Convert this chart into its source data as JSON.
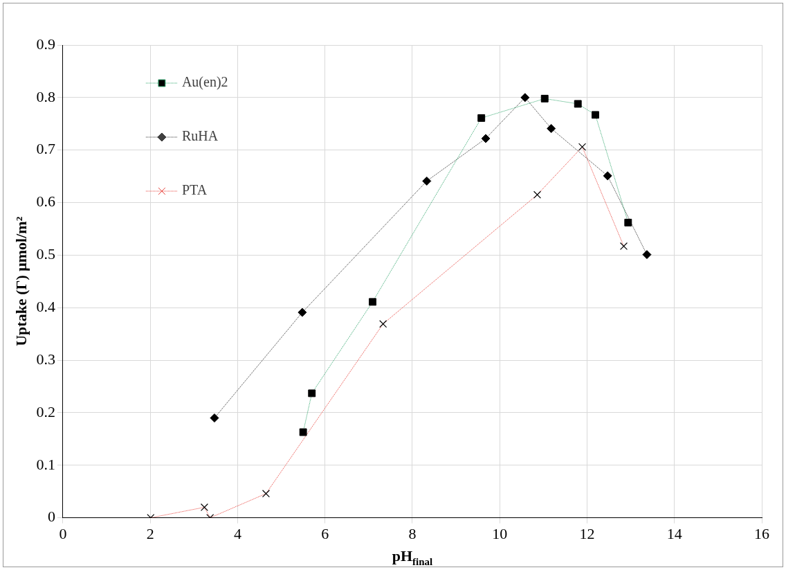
{
  "chart_data": {
    "type": "line",
    "xlabel": "pH$_{final}$",
    "ylabel": "Uptake (Γ) μmol/m²",
    "xlim": [
      0,
      16
    ],
    "xticks": [
      0,
      2,
      4,
      6,
      8,
      10,
      12,
      14,
      16
    ],
    "ylim": [
      0,
      0.9
    ],
    "yticks": [
      0,
      0.1,
      0.2,
      0.3,
      0.4,
      0.5,
      0.6,
      0.7,
      0.8,
      0.9
    ],
    "grid": true,
    "legend": "top left",
    "line_style": "dotted",
    "series": [
      {
        "name": "Au(en)2",
        "color": "#2ea56b",
        "marker": "square",
        "x": [
          5.5,
          5.7,
          7.09,
          9.58,
          11.03,
          11.79,
          12.19,
          12.94
        ],
        "values": [
          0.163,
          0.237,
          0.411,
          0.761,
          0.798,
          0.788,
          0.767,
          0.562
        ]
      },
      {
        "name": "RuHA",
        "color": "#303030",
        "marker": "diamond",
        "x": [
          3.47,
          5.48,
          8.33,
          9.68,
          10.58,
          11.18,
          12.47,
          13.37
        ],
        "values": [
          0.19,
          0.391,
          0.641,
          0.722,
          0.8,
          0.741,
          0.651,
          0.501
        ]
      },
      {
        "name": "PTA",
        "color": "#e8413a",
        "marker": "cross",
        "x": [
          2.01,
          3.24,
          3.37,
          4.65,
          7.33,
          10.86,
          11.89,
          12.84
        ],
        "values": [
          0,
          0.02,
          0,
          0.046,
          0.369,
          0.615,
          0.706,
          0.517
        ]
      }
    ]
  }
}
